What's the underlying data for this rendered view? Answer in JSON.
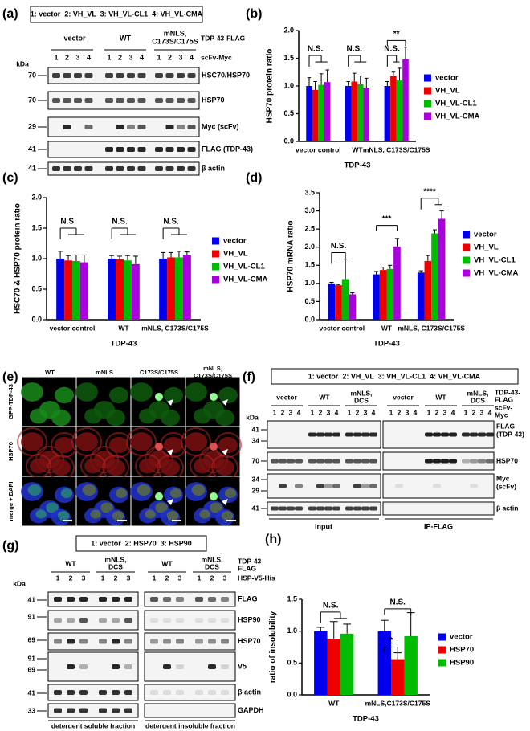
{
  "panels": {
    "a": {
      "panel_label": "(a)",
      "legend": "1: vector  2: VH_VL  3: VH_VL-CL1  4: VH_VL-CMA",
      "groups": [
        [
          "vector"
        ],
        [
          "WT"
        ],
        [
          "mNLS,",
          "C173S/C175S"
        ]
      ],
      "construct_label": "TDP-43-FLAG",
      "scfv_label": "scFv-Myc",
      "lanes": [
        1,
        2,
        3,
        4
      ],
      "kda": "kDa",
      "markers": [
        70,
        70,
        29,
        41,
        41
      ],
      "rows": [
        "HSC70/HSP70",
        "HSP70",
        "Myc (scFv)",
        "FLAG (TDP-43)",
        "β actin"
      ]
    },
    "e": {
      "panel_label": "(e)",
      "columns": [
        [
          "WT"
        ],
        [
          "mNLS"
        ],
        [
          "C173S/C175S"
        ],
        [
          "mNLS,",
          "C173S/C175S"
        ]
      ],
      "rows": [
        "GFP-TDP-43",
        "HSP70",
        "merge + DAPI"
      ]
    },
    "f": {
      "panel_label": "(f)",
      "legend": "1: vector  2: VH_VL  3: VH_VL-CL1  4: VH_VL-CMA",
      "groups": [
        [
          "vector"
        ],
        [
          "WT"
        ],
        [
          "mNLS,",
          "DCS"
        ]
      ],
      "construct_label": [
        "TDP-43-",
        "FLAG"
      ],
      "scfv_label": [
        "scFv-",
        "Myc"
      ],
      "lanes": [
        1,
        2,
        3,
        4
      ],
      "kda": "kDa",
      "markers": [
        41,
        34,
        70,
        34,
        29,
        41
      ],
      "rows": [
        [
          "FLAG",
          "(TDP-43)"
        ],
        [
          "HSP70"
        ],
        [
          "Myc",
          "(scFv)"
        ],
        [
          "β actin"
        ]
      ],
      "fractions": [
        "input",
        "IP-FLAG"
      ]
    },
    "g": {
      "panel_label": "(g)",
      "legend": "1: vector  2: HSP70  3: HSP90",
      "groups": [
        [
          "WT"
        ],
        [
          "mNLS,",
          "DCS"
        ]
      ],
      "construct_label": [
        "TDP-43-",
        "FLAG"
      ],
      "hsp_label": "HSP-V5-His",
      "lanes": [
        1,
        2,
        3
      ],
      "kda": "kDa",
      "markers": [
        41,
        91,
        69,
        91,
        69,
        41,
        33
      ],
      "rows": [
        "FLAG",
        "HSP90",
        "HSP70",
        "V5",
        "β actin",
        "GAPDH"
      ],
      "fractions": [
        "detergent soluble fraction",
        "detergent insoluble fraction"
      ]
    }
  },
  "chart_data": [
    {
      "panel_label": "(b)",
      "type": "bar",
      "ylabel": "HSP70 protein ratio",
      "xlabel": "TDP-43",
      "categories": [
        "vector control",
        "WT",
        "mNLS, C173S/C175S"
      ],
      "series": [
        {
          "name": "vector",
          "color": "#0000ee",
          "values": [
            1.0,
            1.0,
            1.0
          ],
          "errors": [
            0.15,
            0.08,
            0.08
          ]
        },
        {
          "name": "VH_VL",
          "color": "#ee0000",
          "values": [
            0.93,
            1.08,
            1.18
          ],
          "errors": [
            0.15,
            0.15,
            0.07
          ]
        },
        {
          "name": "VH_VL-CL1",
          "color": "#00bb00",
          "values": [
            1.02,
            1.03,
            1.1
          ],
          "errors": [
            0.2,
            0.15,
            0.22
          ]
        },
        {
          "name": "VH_VL-CMA",
          "color": "#aa00dd",
          "values": [
            1.07,
            0.97,
            1.48
          ],
          "errors": [
            0.22,
            0.17,
            0.22
          ]
        }
      ],
      "ylim": [
        0,
        2
      ],
      "yticks": [
        {
          "value": 0,
          "label": "0.0"
        },
        0.5,
        {
          "value": 1,
          "label": "1.0"
        },
        1.5,
        {
          "value": 2,
          "label": "2.0"
        }
      ],
      "annotations": [
        "N.S.",
        "N.S.",
        "N.S.",
        "**"
      ]
    },
    {
      "panel_label": "(c)",
      "type": "bar",
      "ylabel": "HSC70 & HSP70 protein ratio",
      "xlabel": "TDP-43",
      "categories": [
        "vector control",
        "WT",
        "mNLS, C173S/C175S"
      ],
      "series": [
        {
          "name": "vector",
          "color": "#0000ee",
          "values": [
            1.0,
            1.0,
            1.0
          ],
          "errors": [
            0.12,
            0.05,
            0.1
          ]
        },
        {
          "name": "VH_VL",
          "color": "#ee0000",
          "values": [
            0.97,
            0.99,
            1.02
          ],
          "errors": [
            0.08,
            0.05,
            0.08
          ]
        },
        {
          "name": "VH_VL-CL1",
          "color": "#00bb00",
          "values": [
            0.96,
            0.97,
            1.02
          ],
          "errors": [
            0.1,
            0.08,
            0.1
          ]
        },
        {
          "name": "VH_VL-CMA",
          "color": "#aa00dd",
          "values": [
            0.94,
            0.91,
            1.06
          ],
          "errors": [
            0.12,
            0.13,
            0.05
          ]
        }
      ],
      "ylim": [
        0,
        2
      ],
      "yticks": [
        {
          "value": 0,
          "label": "0.0"
        },
        0.5,
        {
          "value": 1,
          "label": "1.0"
        },
        1.5,
        {
          "value": 2,
          "label": "2.0"
        }
      ],
      "annotations": [
        "N.S.",
        "N.S.",
        "N.S."
      ]
    },
    {
      "panel_label": "(d)",
      "type": "bar",
      "ylabel": "HSP70 mRNA ratio",
      "xlabel": "TDP-43",
      "categories": [
        "vector control",
        "WT",
        "mNLS, C173S/C175S"
      ],
      "series": [
        {
          "name": "vector",
          "color": "#0000ee",
          "values": [
            1.0,
            1.25,
            1.3
          ],
          "errors": [
            0.03,
            0.08,
            0.05
          ]
        },
        {
          "name": "VH_VL",
          "color": "#ee0000",
          "values": [
            0.95,
            1.37,
            1.62
          ],
          "errors": [
            0.02,
            0.08,
            0.15
          ]
        },
        {
          "name": "VH_VL-CL1",
          "color": "#00bb00",
          "values": [
            1.12,
            1.4,
            2.38
          ],
          "errors": [
            0.55,
            0.1,
            0.1
          ]
        },
        {
          "name": "VH_VL-CMA",
          "color": "#aa00dd",
          "values": [
            0.7,
            2.02,
            2.78
          ],
          "errors": [
            0.04,
            0.22,
            0.22
          ]
        }
      ],
      "ylim": [
        0,
        3.5
      ],
      "yticks": [
        {
          "value": 0,
          "label": "0.0"
        },
        0.5,
        {
          "value": 1,
          "label": "1.0"
        },
        1.5,
        {
          "value": 2,
          "label": "2.0"
        },
        2.5,
        {
          "value": 3,
          "label": "3.0"
        },
        3.5
      ],
      "annotations": [
        "N.S.",
        "***",
        "****"
      ]
    },
    {
      "panel_label": "(h)",
      "type": "bar",
      "ylabel": "ratio of insolubility",
      "xlabel": "TDP-43",
      "categories": [
        "WT",
        "mNLS,C173S/C175S"
      ],
      "series": [
        {
          "name": "vector",
          "color": "#0000ee",
          "values": [
            1.0,
            1.0
          ],
          "errors": [
            0.06,
            0.17
          ]
        },
        {
          "name": "HSP70",
          "color": "#ee0000",
          "values": [
            0.88,
            0.56
          ],
          "errors": [
            0.27,
            0.1
          ]
        },
        {
          "name": "HSP90",
          "color": "#00bb00",
          "values": [
            0.96,
            0.92
          ],
          "errors": [
            0.15,
            0.37
          ]
        }
      ],
      "ylim": [
        0,
        1.5
      ],
      "yticks": [
        {
          "value": 0,
          "label": "0.0"
        },
        0.5,
        {
          "value": 1,
          "label": "1.0"
        },
        1.5
      ],
      "annotations": [
        "N.S.",
        "N.S.",
        "*"
      ]
    }
  ]
}
